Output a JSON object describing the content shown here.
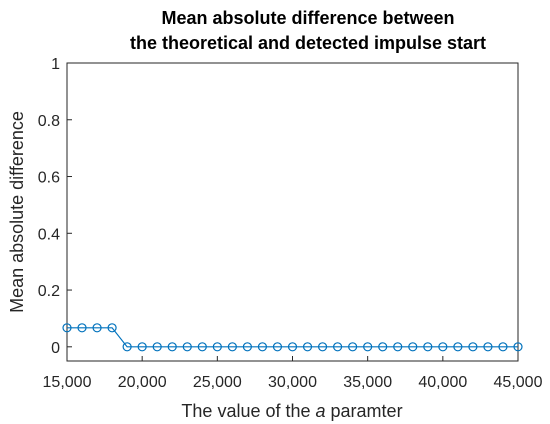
{
  "chart_data": {
    "type": "line",
    "title": [
      "Mean absolute difference between",
      "the theoretical and detected impulse start"
    ],
    "xlabel": {
      "prefix": "The value of the ",
      "italic": "a",
      "suffix": " paramter"
    },
    "ylabel": "Mean absolute difference",
    "xlim": [
      15000,
      45000
    ],
    "ylim": [
      -0.05,
      1
    ],
    "x_ticks": [
      15000,
      20000,
      25000,
      30000,
      35000,
      40000,
      45000
    ],
    "x_tick_labels": [
      "15,000",
      "20,000",
      "25,000",
      "30,000",
      "35,000",
      "40,000",
      "45,000"
    ],
    "y_ticks": [
      0,
      0.2,
      0.4,
      0.6,
      0.8,
      1
    ],
    "y_tick_labels": [
      "0",
      "0.2",
      "0.4",
      "0.6",
      "0.8",
      "1"
    ],
    "grid": false,
    "series": [
      {
        "color": "#0072BD",
        "marker": "circle",
        "x": [
          15000,
          16000,
          17000,
          18000,
          19000,
          20000,
          21000,
          22000,
          23000,
          24000,
          25000,
          26000,
          27000,
          28000,
          29000,
          30000,
          31000,
          32000,
          33000,
          34000,
          35000,
          36000,
          37000,
          38000,
          39000,
          40000,
          41000,
          42000,
          43000,
          44000,
          45000
        ],
        "y": [
          0.067,
          0.067,
          0.067,
          0.067,
          0,
          0,
          0,
          0,
          0,
          0,
          0,
          0,
          0,
          0,
          0,
          0,
          0,
          0,
          0,
          0,
          0,
          0,
          0,
          0,
          0,
          0,
          0,
          0,
          0,
          0,
          0
        ]
      }
    ]
  }
}
